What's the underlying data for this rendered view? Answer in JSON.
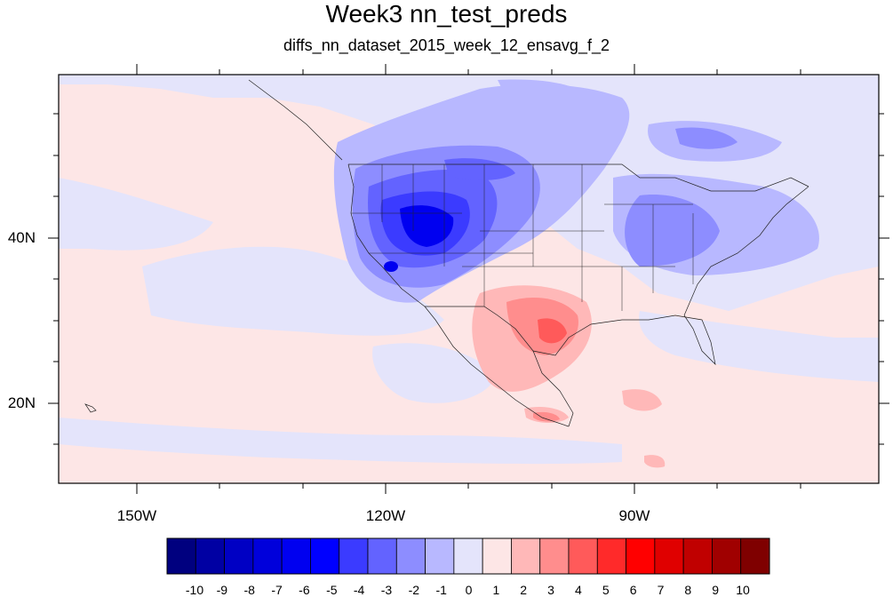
{
  "title": "Week3 nn_test_preds",
  "subtitle": "diffs_nn_dataset_2015_week_12_ensavg_f_2",
  "axes": {
    "x_labels": [
      "150W",
      "120W",
      "90W"
    ],
    "y_labels": [
      "40N",
      "20N"
    ]
  },
  "colorbar": {
    "labels": [
      "-10",
      "-9",
      "-8",
      "-7",
      "-6",
      "-5",
      "-4",
      "-3",
      "-2",
      "-1",
      "0",
      "1",
      "2",
      "3",
      "4",
      "5",
      "6",
      "7",
      "8",
      "9",
      "10"
    ],
    "colors": [
      "#00007f",
      "#0000a3",
      "#0000c4",
      "#0000db",
      "#0000f0",
      "#0000ff",
      "#3b3bff",
      "#6363ff",
      "#8d8dff",
      "#b8b8ff",
      "#e4e4fb",
      "#fde6e6",
      "#ffb8b8",
      "#ff8d8d",
      "#ff5a5a",
      "#ff2a2a",
      "#ff0000",
      "#e00000",
      "#c00000",
      "#a00000",
      "#7f0000"
    ]
  },
  "map_colors": {
    "ocean_light_red": "#fde6e6",
    "light_blue": "#e4e4fb",
    "blue_1": "#b8b8ff",
    "blue_2": "#8d8dff",
    "blue_3": "#6363ff",
    "blue_4": "#3b3bff",
    "blue_5": "#0000f0",
    "red_1": "#ffb8b8",
    "red_2": "#ff8d8d",
    "red_3": "#ff5a5a"
  }
}
